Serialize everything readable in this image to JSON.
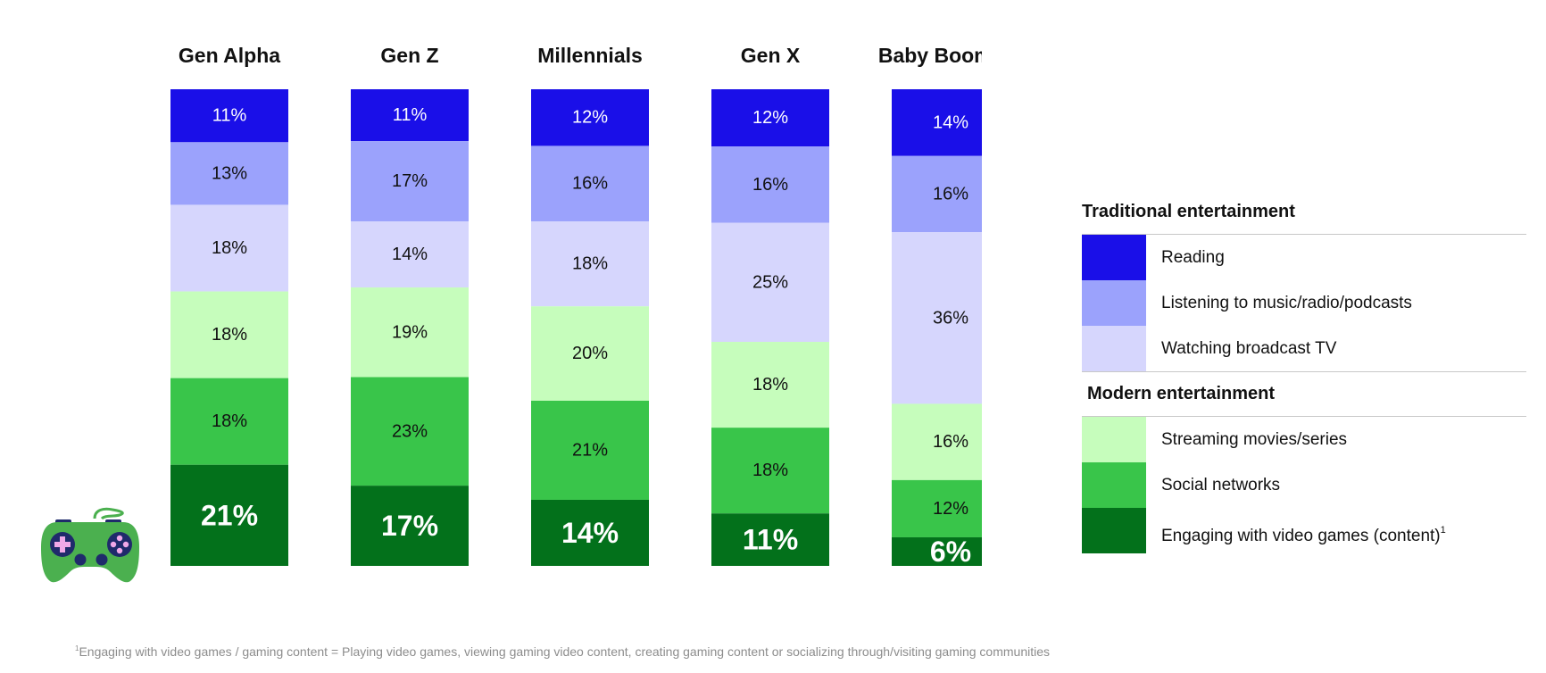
{
  "chart_data": {
    "type": "stacked-bar-100",
    "categories": [
      "Gen Alpha",
      "Gen Z",
      "Millennials",
      "Gen X",
      "Baby Boomers"
    ],
    "series": [
      {
        "name": "Reading",
        "group": "Traditional entertainment",
        "color": "#1a0fe8",
        "text_color": "#ffffff",
        "values": [
          11,
          11,
          12,
          12,
          14
        ]
      },
      {
        "name": "Listening to music/radio/podcasts",
        "group": "Traditional entertainment",
        "color": "#9ba2fc",
        "text_color": "#111111",
        "values": [
          13,
          17,
          16,
          16,
          16
        ]
      },
      {
        "name": "Watching broadcast TV",
        "group": "Traditional entertainment",
        "color": "#d6d6fd",
        "text_color": "#111111",
        "values": [
          18,
          14,
          18,
          25,
          36
        ]
      },
      {
        "name": "Streaming movies/series",
        "group": "Modern entertainment",
        "color": "#c6fdbc",
        "text_color": "#111111",
        "values": [
          18,
          19,
          20,
          18,
          16
        ]
      },
      {
        "name": "Social networks",
        "group": "Modern entertainment",
        "color": "#39c54a",
        "text_color": "#111111",
        "values": [
          18,
          23,
          21,
          18,
          12
        ]
      },
      {
        "name": "Engaging with video games (content)",
        "footnote_marker": "1",
        "group": "Modern entertainment",
        "color": "#03711b",
        "text_color": "#ffffff",
        "emphasis": true,
        "values": [
          21,
          17,
          14,
          11,
          6
        ]
      }
    ],
    "value_suffix": "%",
    "legend": {
      "position": "right",
      "groups": [
        {
          "heading": "Traditional entertainment",
          "items": [
            "Reading",
            "Listening to music/radio/podcasts",
            "Watching broadcast TV"
          ]
        },
        {
          "heading": "Modern entertainment",
          "items": [
            "Streaming movies/series",
            "Social networks",
            "Engaging with video games (content)"
          ]
        }
      ]
    },
    "grid": false
  },
  "footnote": {
    "marker": "1",
    "text": "Engaging with video games / gaming content = Playing video games, viewing gaming video content, creating gaming content or socializing through/visiting gaming communities"
  },
  "icons": {
    "gamepad": {
      "name": "gamepad-icon",
      "body_color": "#4bb04f",
      "button_color": "#1f2a6b",
      "accent_color": "#f0a8e8"
    }
  }
}
